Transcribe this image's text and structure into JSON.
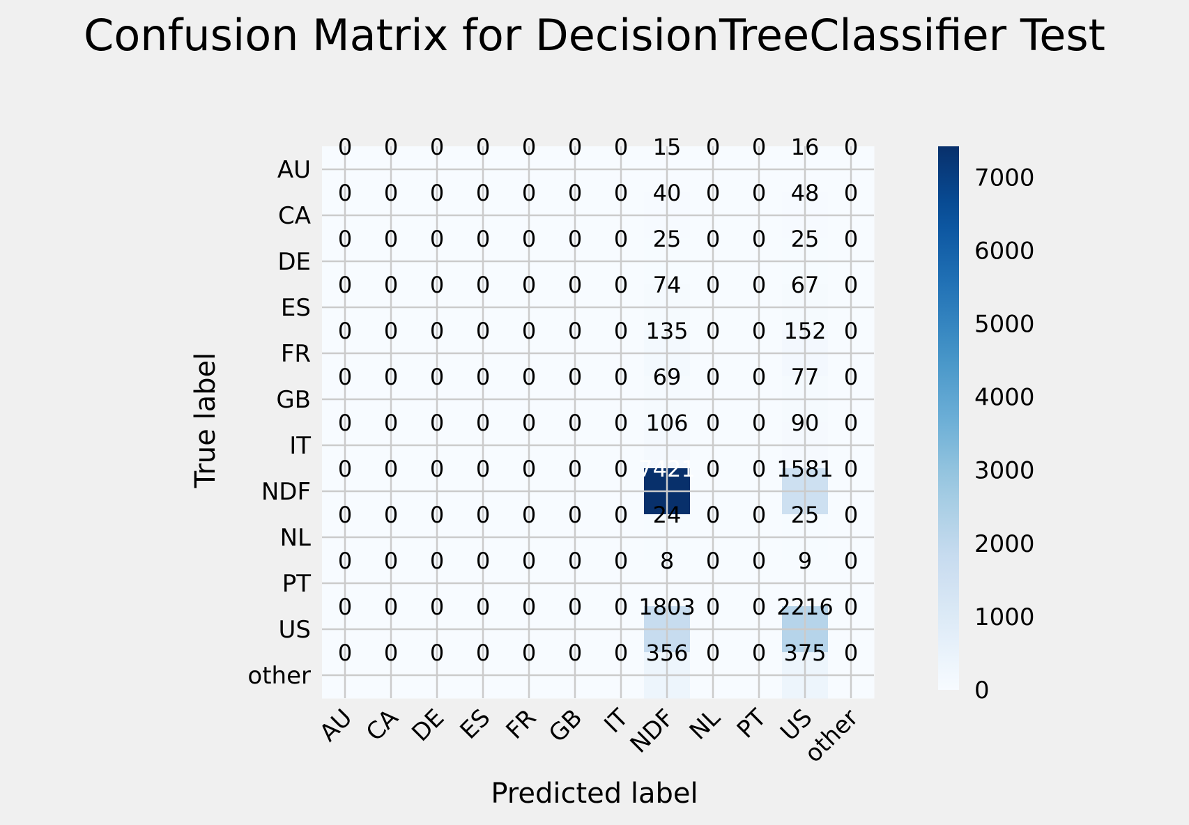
{
  "chart_data": {
    "type": "heatmap",
    "title": "Confusion Matrix for DecisionTreeClassifier Test",
    "xlabel": "Predicted label",
    "ylabel": "True label",
    "x_categories": [
      "AU",
      "CA",
      "DE",
      "ES",
      "FR",
      "GB",
      "IT",
      "NDF",
      "NL",
      "PT",
      "US",
      "other"
    ],
    "y_categories": [
      "AU",
      "CA",
      "DE",
      "ES",
      "FR",
      "GB",
      "IT",
      "NDF",
      "NL",
      "PT",
      "US",
      "other"
    ],
    "values": [
      [
        0,
        0,
        0,
        0,
        0,
        0,
        0,
        15,
        0,
        0,
        16,
        0
      ],
      [
        0,
        0,
        0,
        0,
        0,
        0,
        0,
        40,
        0,
        0,
        48,
        0
      ],
      [
        0,
        0,
        0,
        0,
        0,
        0,
        0,
        25,
        0,
        0,
        25,
        0
      ],
      [
        0,
        0,
        0,
        0,
        0,
        0,
        0,
        74,
        0,
        0,
        67,
        0
      ],
      [
        0,
        0,
        0,
        0,
        0,
        0,
        0,
        135,
        0,
        0,
        152,
        0
      ],
      [
        0,
        0,
        0,
        0,
        0,
        0,
        0,
        69,
        0,
        0,
        77,
        0
      ],
      [
        0,
        0,
        0,
        0,
        0,
        0,
        0,
        106,
        0,
        0,
        90,
        0
      ],
      [
        0,
        0,
        0,
        0,
        0,
        0,
        0,
        7421,
        0,
        0,
        1581,
        0
      ],
      [
        0,
        0,
        0,
        0,
        0,
        0,
        0,
        24,
        0,
        0,
        25,
        0
      ],
      [
        0,
        0,
        0,
        0,
        0,
        0,
        0,
        8,
        0,
        0,
        9,
        0
      ],
      [
        0,
        0,
        0,
        0,
        0,
        0,
        0,
        1803,
        0,
        0,
        2216,
        0
      ],
      [
        0,
        0,
        0,
        0,
        0,
        0,
        0,
        356,
        0,
        0,
        375,
        0
      ]
    ],
    "colorbar": {
      "colormap": "Blues",
      "range": [
        0,
        7421
      ],
      "ticks": [
        0,
        1000,
        2000,
        3000,
        4000,
        5000,
        6000,
        7000
      ]
    },
    "grid": true,
    "colors": {
      "background": "#f0f0f0",
      "grid": "#cbcbcb",
      "text_dark": "#000000",
      "text_light": "#ffffff",
      "scale_low": "#f7fbff",
      "scale_high": "#08306b"
    }
  }
}
